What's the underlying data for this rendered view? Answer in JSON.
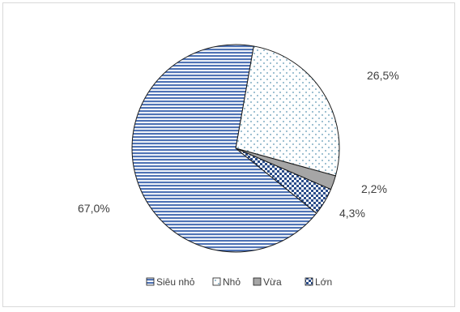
{
  "chart_data": {
    "type": "pie",
    "categories": [
      "Siêu nhỏ",
      "Nhỏ",
      "Vừa",
      "Lớn"
    ],
    "values": [
      67.0,
      26.5,
      2.2,
      4.3
    ],
    "data_labels": [
      "67,0%",
      "26,5%",
      "2,2%",
      "4,3%"
    ],
    "title": "",
    "legend_position": "bottom",
    "slice_order": [
      "Nhỏ",
      "Vừa",
      "Lớn",
      "Siêu nhỏ"
    ],
    "start_angle_deg": 10,
    "colors": {
      "sieu_nho": "#4f73b5",
      "nho": "#5b95b2",
      "vua": "#9e9e9e",
      "lon": "#2b4d8a"
    }
  },
  "legend": {
    "items": [
      {
        "label": "Siêu nhỏ",
        "pattern": "stripes"
      },
      {
        "label": "Nhỏ",
        "pattern": "dots"
      },
      {
        "label": "Vừa",
        "pattern": "solid-gray"
      },
      {
        "label": "Lớn",
        "pattern": "checker"
      }
    ]
  }
}
